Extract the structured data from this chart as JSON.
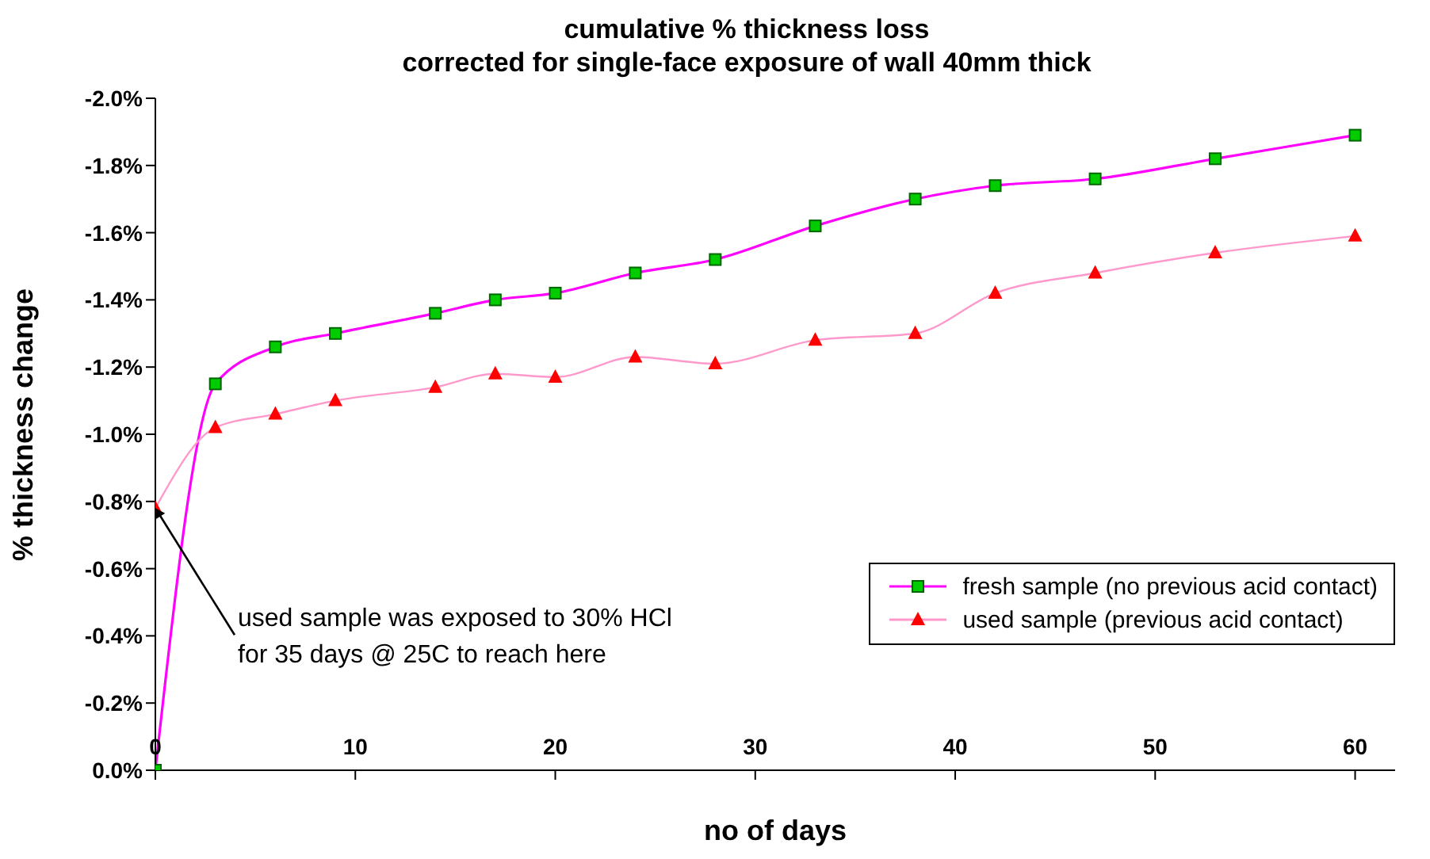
{
  "chart_data": {
    "type": "line",
    "title": "cumulative % thickness loss",
    "subtitle": "corrected for single-face exposure of wall 40mm thick",
    "xlabel": "no of days",
    "ylabel": "% thickness change",
    "x": [
      0,
      3,
      6,
      9,
      14,
      17,
      20,
      24,
      28,
      33,
      38,
      42,
      47,
      53,
      60
    ],
    "series": [
      {
        "name": "fresh sample (no previous acid contact)",
        "color": "#ff00ff",
        "marker": "square",
        "values": [
          0,
          -1.15,
          -1.26,
          -1.3,
          -1.36,
          -1.4,
          -1.42,
          -1.48,
          -1.52,
          -1.62,
          -1.7,
          -1.74,
          -1.76,
          -1.82,
          -1.89
        ]
      },
      {
        "name": "used sample (previous acid contact)",
        "color": "#ff99cc",
        "marker": "triangle",
        "values": [
          -0.78,
          -1.02,
          -1.06,
          -1.1,
          -1.14,
          -1.18,
          -1.17,
          -1.23,
          -1.21,
          -1.28,
          -1.3,
          -1.42,
          -1.48,
          -1.54,
          -1.59
        ]
      }
    ],
    "xlim": [
      0,
      62
    ],
    "xticks": [
      0,
      10,
      20,
      30,
      40,
      50,
      60
    ],
    "ylim": [
      0,
      -2
    ],
    "yticks": [
      {
        "value": 0,
        "label": "0.0%"
      },
      {
        "value": -0.2,
        "label": "-0.2%"
      },
      {
        "value": -0.4,
        "label": "-0.4%"
      },
      {
        "value": -0.6,
        "label": "-0.6%"
      },
      {
        "value": -0.8,
        "label": "-0.8%"
      },
      {
        "value": -1,
        "label": "-1.0%"
      },
      {
        "value": -1.2,
        "label": "-1.2%"
      },
      {
        "value": -1.4,
        "label": "-1.4%"
      },
      {
        "value": -1.6,
        "label": "-1.6%"
      },
      {
        "value": -1.8,
        "label": "-1.8%"
      },
      {
        "value": -2,
        "label": "-2.0%"
      }
    ],
    "annotations": [
      {
        "text": "used sample was exposed to 30% HCl\nfor 35 days @ 25C to reach here",
        "x": 0,
        "y": -0.78
      }
    ],
    "grid": false,
    "legend": "bottom right"
  }
}
